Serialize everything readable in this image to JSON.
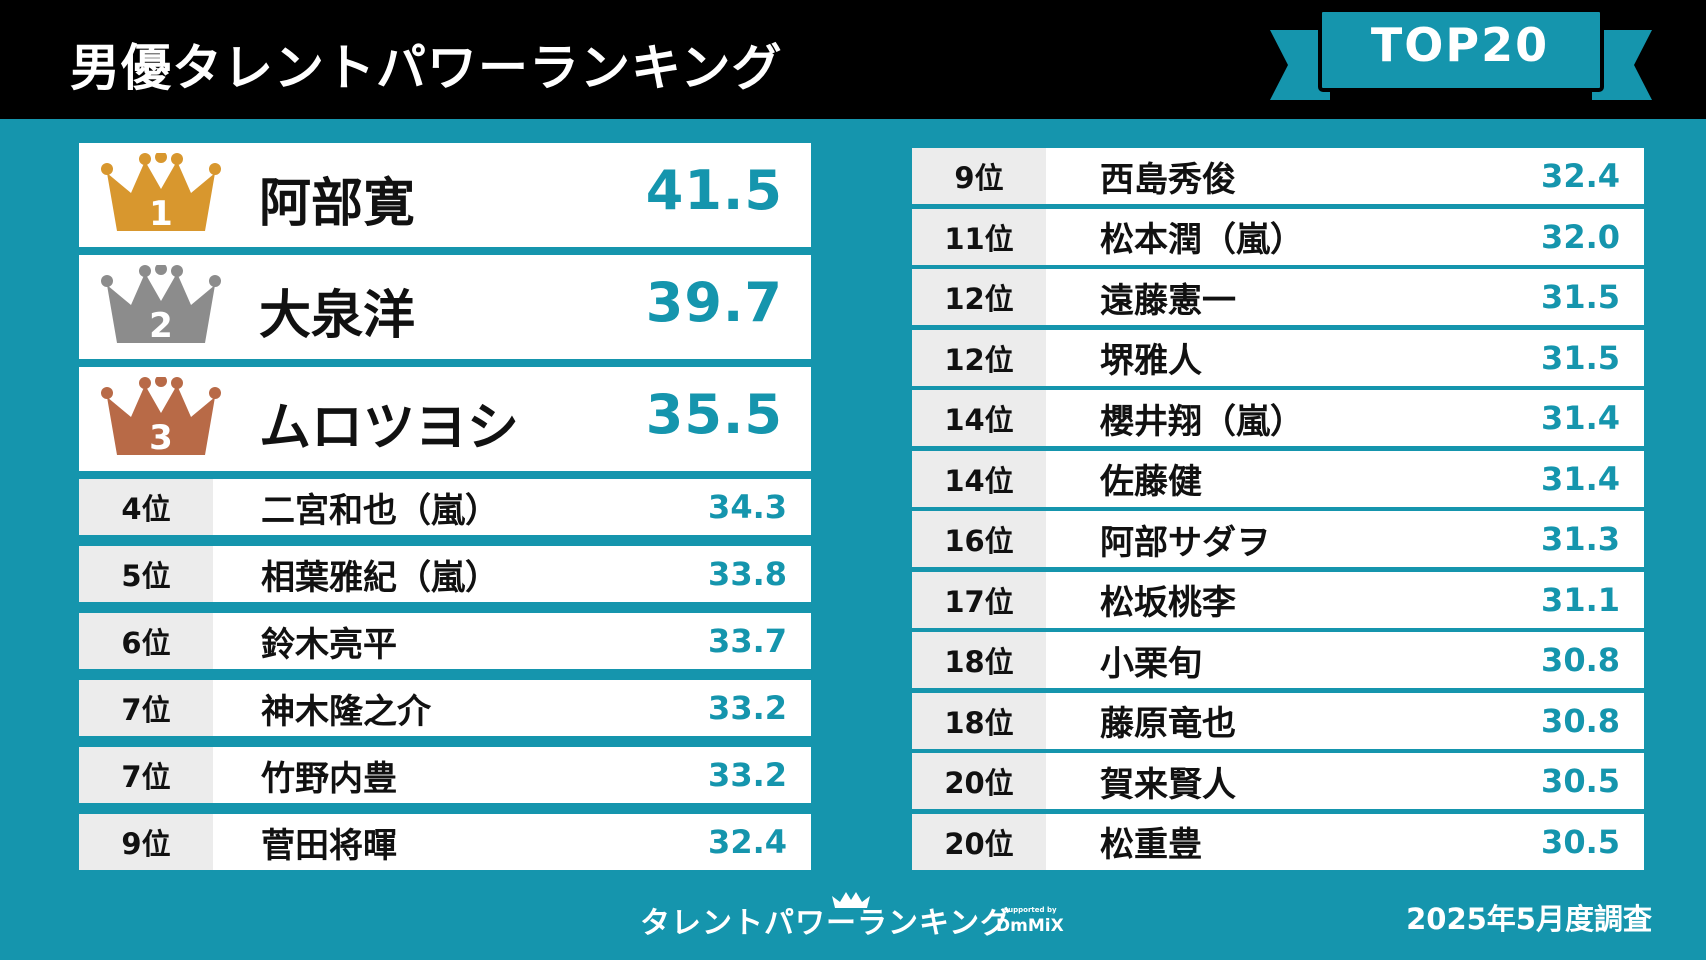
{
  "header": {
    "title": "男優タレントパワーランキング",
    "badge": "TOP20"
  },
  "colors": {
    "teal": "#1595ad",
    "gold": "#d8972e",
    "silver": "#8c8c8c",
    "bronze": "#b86a47"
  },
  "top3": [
    {
      "rank_icon": "crown-gold-icon",
      "rank_num": "1",
      "name": "阿部寛",
      "score": "41.5"
    },
    {
      "rank_icon": "crown-silver-icon",
      "rank_num": "2",
      "name": "大泉洋",
      "score": "39.7"
    },
    {
      "rank_icon": "crown-bronze-icon",
      "rank_num": "3",
      "name": "ムロツヨシ",
      "score": "35.5"
    }
  ],
  "left_list": [
    {
      "rank": "4位",
      "name": "二宮和也（嵐）",
      "score": "34.3"
    },
    {
      "rank": "5位",
      "name": "相葉雅紀（嵐）",
      "score": "33.8"
    },
    {
      "rank": "6位",
      "name": "鈴木亮平",
      "score": "33.7"
    },
    {
      "rank": "7位",
      "name": "神木隆之介",
      "score": "33.2"
    },
    {
      "rank": "7位",
      "name": "竹野内豊",
      "score": "33.2"
    },
    {
      "rank": "9位",
      "name": "菅田将暉",
      "score": "32.4"
    }
  ],
  "right_list": [
    {
      "rank": "9位",
      "name": "西島秀俊",
      "score": "32.4"
    },
    {
      "rank": "11位",
      "name": "松本潤（嵐）",
      "score": "32.0"
    },
    {
      "rank": "12位",
      "name": "遠藤憲一",
      "score": "31.5"
    },
    {
      "rank": "12位",
      "name": "堺雅人",
      "score": "31.5"
    },
    {
      "rank": "14位",
      "name": "櫻井翔（嵐）",
      "score": "31.4"
    },
    {
      "rank": "14位",
      "name": "佐藤健",
      "score": "31.4"
    },
    {
      "rank": "16位",
      "name": "阿部サダヲ",
      "score": "31.3"
    },
    {
      "rank": "17位",
      "name": "松坂桃李",
      "score": "31.1"
    },
    {
      "rank": "18位",
      "name": "小栗旬",
      "score": "30.8"
    },
    {
      "rank": "18位",
      "name": "藤原竜也",
      "score": "30.8"
    },
    {
      "rank": "20位",
      "name": "賀来賢人",
      "score": "30.5"
    },
    {
      "rank": "20位",
      "name": "松重豊",
      "score": "30.5"
    }
  ],
  "footer": {
    "logo": "タレントパワーランキング",
    "supported_by": "supported by",
    "brand": "DmMiX",
    "survey": "2025年5月度調査"
  }
}
